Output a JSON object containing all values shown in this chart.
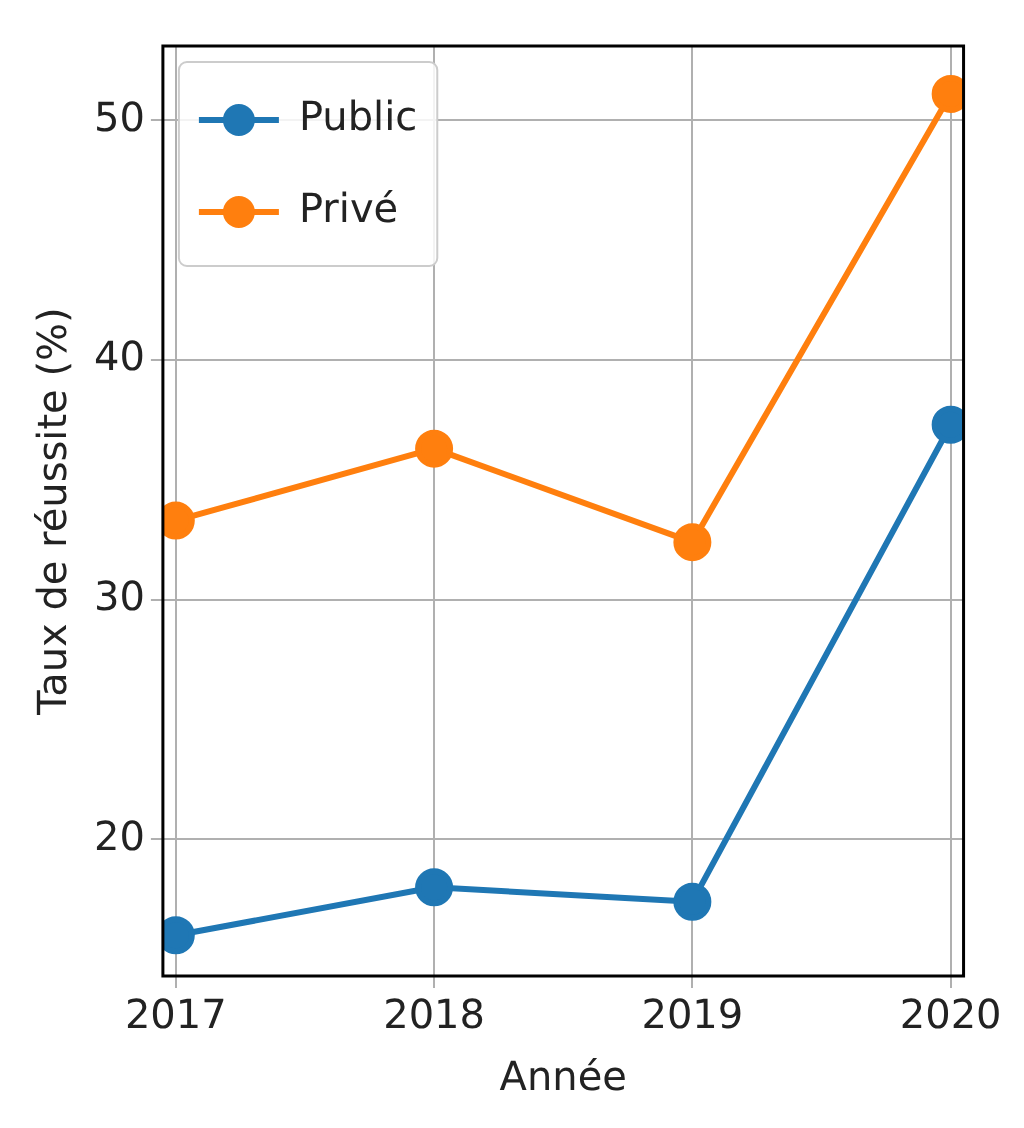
{
  "chart_data": {
    "type": "line",
    "xlabel": "Année",
    "ylabel": "Taux de réussite (%)",
    "x": [
      2017,
      2018,
      2019,
      2020
    ],
    "series": [
      {
        "name": "Public",
        "color": "#1f77b4",
        "values": [
          16.0,
          18.0,
          17.4,
          37.3
        ]
      },
      {
        "name": "Privé",
        "color": "#ff7f0e",
        "values": [
          33.3,
          36.3,
          32.4,
          51.1
        ]
      }
    ],
    "xlim": [
      2016.95,
      2020.05
    ],
    "xticks": [
      2017,
      2018,
      2019,
      2020
    ],
    "ylim": [
      14.3,
      53.1
    ],
    "yticks": [
      20,
      30,
      40,
      50
    ],
    "grid": true,
    "legend": "top left",
    "marker": "circle",
    "line_style": "solid"
  }
}
